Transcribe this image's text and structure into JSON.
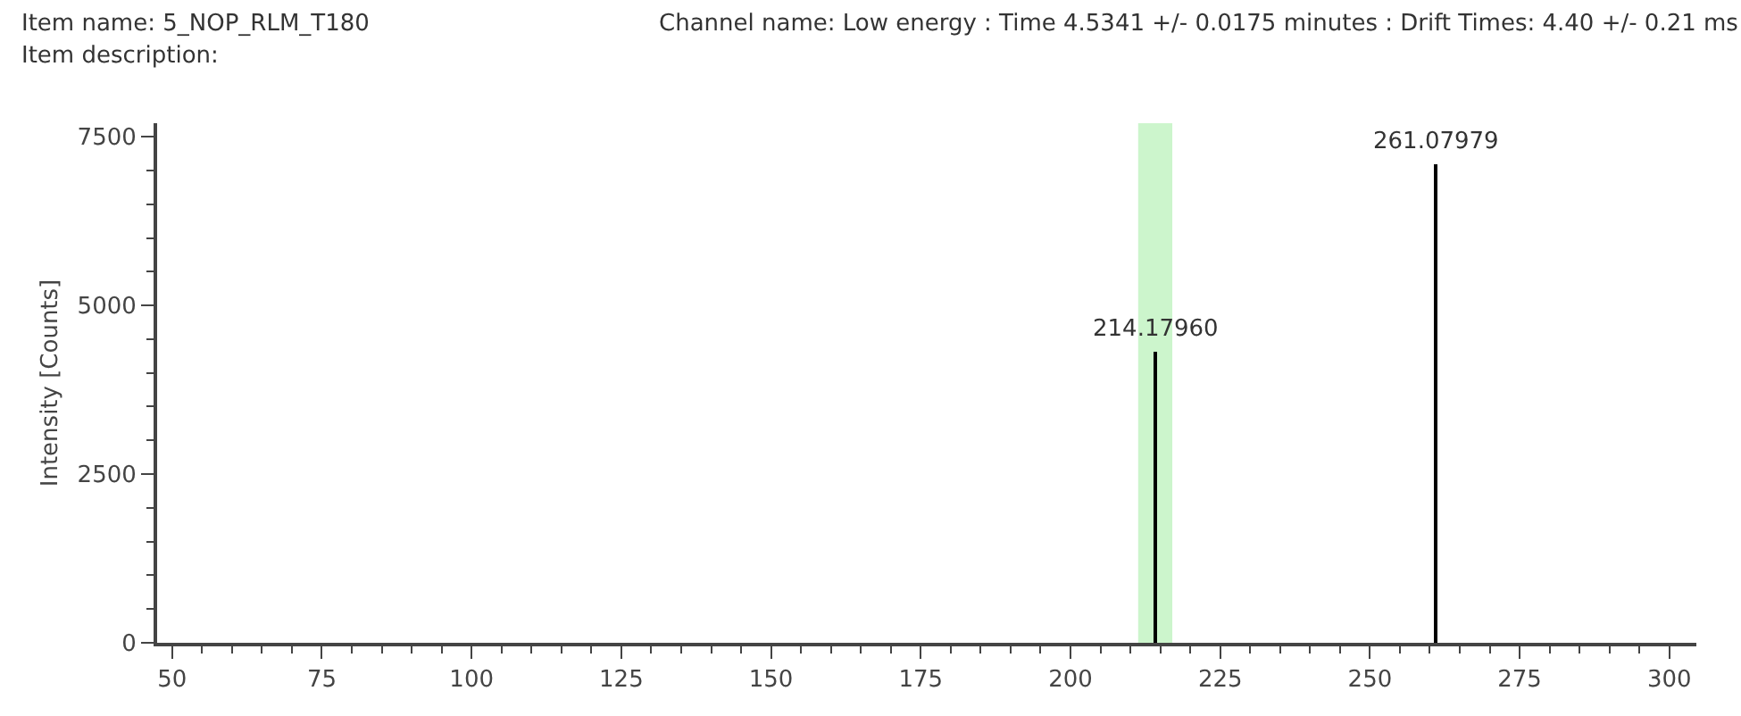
{
  "chart_data": {
    "type": "bar",
    "title": "Item name: 5_NOP_RLM_T180",
    "subtitle": "Item description:",
    "annotations": [
      "Channel name: Low energy : Time 4.5341 +/- 0.0175 minutes : Drift Times: 4.40 +/- 0.21 ms",
      {
        "text": "214.17960",
        "x": 214.1796,
        "y": 4300
      },
      {
        "text": "261.07979",
        "x": 261.07979,
        "y": 7100
      }
    ],
    "ylabel": "Intensity [Counts]",
    "x": [
      214.1796,
      261.07979
    ],
    "series": [
      {
        "color": "#000000",
        "values": [
          4300,
          7100
        ]
      }
    ],
    "bands": [
      {
        "axis": "x",
        "from": 211.3,
        "to": 217.0,
        "color": "#ccf5cc"
      }
    ],
    "xlim": [
      47.5,
      304.5
    ],
    "ylim": [
      0,
      7700
    ],
    "xticks": [
      50,
      {
        "value": 55,
        "label": null
      },
      {
        "value": 60,
        "label": null
      },
      {
        "value": 65,
        "label": null
      },
      {
        "value": 70,
        "label": null
      },
      75,
      {
        "value": 80,
        "label": null
      },
      {
        "value": 85,
        "label": null
      },
      {
        "value": 90,
        "label": null
      },
      {
        "value": 95,
        "label": null
      },
      100,
      {
        "value": 105,
        "label": null
      },
      {
        "value": 110,
        "label": null
      },
      {
        "value": 115,
        "label": null
      },
      {
        "value": 120,
        "label": null
      },
      125,
      {
        "value": 130,
        "label": null
      },
      {
        "value": 135,
        "label": null
      },
      {
        "value": 140,
        "label": null
      },
      {
        "value": 145,
        "label": null
      },
      150,
      {
        "value": 155,
        "label": null
      },
      {
        "value": 160,
        "label": null
      },
      {
        "value": 165,
        "label": null
      },
      {
        "value": 170,
        "label": null
      },
      175,
      {
        "value": 180,
        "label": null
      },
      {
        "value": 185,
        "label": null
      },
      {
        "value": 190,
        "label": null
      },
      {
        "value": 195,
        "label": null
      },
      200,
      {
        "value": 205,
        "label": null
      },
      {
        "value": 210,
        "label": null
      },
      {
        "value": 215,
        "label": null
      },
      {
        "value": 220,
        "label": null
      },
      225,
      {
        "value": 230,
        "label": null
      },
      {
        "value": 235,
        "label": null
      },
      {
        "value": 240,
        "label": null
      },
      {
        "value": 245,
        "label": null
      },
      250,
      {
        "value": 255,
        "label": null
      },
      {
        "value": 260,
        "label": null
      },
      {
        "value": 265,
        "label": null
      },
      {
        "value": 270,
        "label": null
      },
      275,
      {
        "value": 280,
        "label": null
      },
      {
        "value": 285,
        "label": null
      },
      {
        "value": 290,
        "label": null
      },
      {
        "value": 295,
        "label": null
      },
      300
    ],
    "yticks": [
      0,
      {
        "value": 500,
        "label": null
      },
      {
        "value": 1000,
        "label": null
      },
      {
        "value": 1500,
        "label": null
      },
      {
        "value": 2000,
        "label": null
      },
      2500,
      {
        "value": 3000,
        "label": null
      },
      {
        "value": 3500,
        "label": null
      },
      {
        "value": 4000,
        "label": null
      },
      {
        "value": 4500,
        "label": null
      },
      5000,
      {
        "value": 5500,
        "label": null
      },
      {
        "value": 6000,
        "label": null
      },
      {
        "value": 6500,
        "label": null
      },
      {
        "value": 7000,
        "label": null
      },
      7500
    ],
    "tick_labels": [
      "x",
      "y"
    ]
  }
}
